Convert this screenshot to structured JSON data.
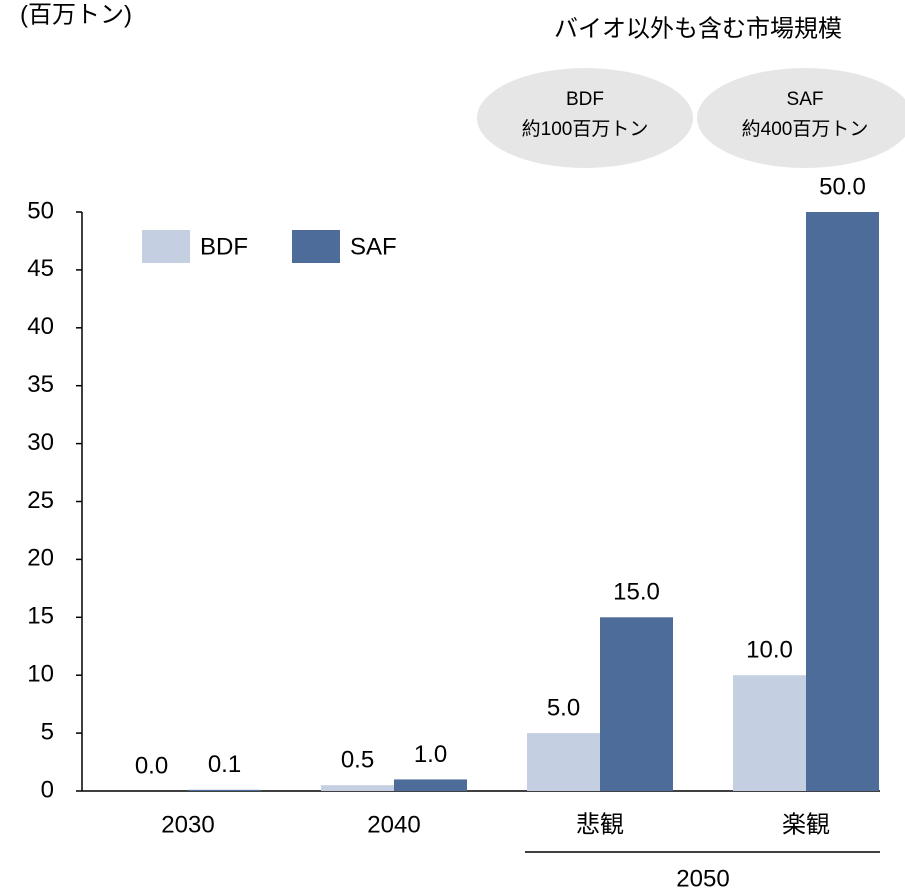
{
  "chart_data": {
    "type": "bar",
    "y_label": "(百万トン)",
    "annotation": "バイオ以外も含む市場規模",
    "callouts": [
      [
        "BDF",
        "約100百万トン"
      ],
      [
        "SAF",
        "約400百万トン"
      ]
    ],
    "categories": [
      "2030",
      "2040",
      "悲観",
      "楽観"
    ],
    "group_label": "2050",
    "series": [
      {
        "name": "BDF",
        "color": "#c5cfe2",
        "values": [
          0.0,
          0.5,
          5,
          10
        ],
        "value_labels": [
          "0.0",
          "0.5",
          "5.0",
          "10.0"
        ]
      },
      {
        "name": "SAF",
        "color": "#4e6c9a",
        "values": [
          0.1,
          1,
          15,
          50
        ],
        "value_labels": [
          "0.1",
          "1.0",
          "15.0",
          "50.0"
        ]
      }
    ],
    "ylim": [
      0,
      50
    ],
    "yticks": [
      0,
      5,
      10,
      15,
      20,
      25,
      30,
      35,
      40,
      45,
      50
    ]
  }
}
